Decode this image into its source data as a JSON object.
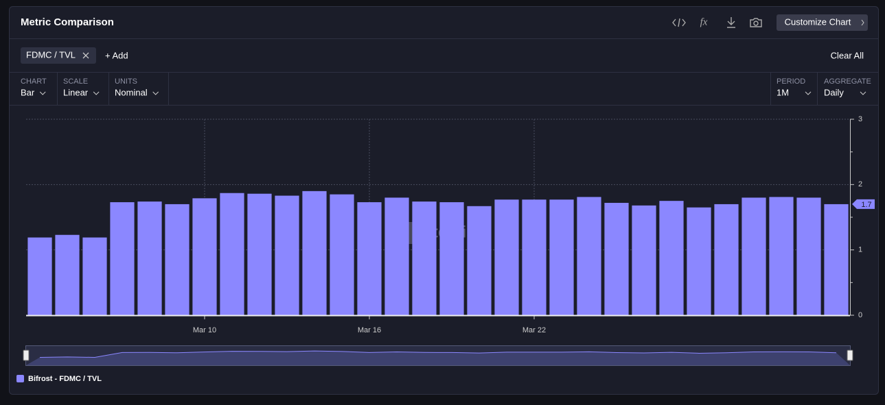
{
  "header": {
    "title": "Metric Comparison",
    "formula_icon": "fx",
    "customize": "Customize Chart"
  },
  "metrics": {
    "chips": [
      "FDMC / TVL"
    ],
    "add": "+ Add",
    "clear": "Clear All"
  },
  "controls": [
    {
      "label": "CHART",
      "value": "Bar"
    },
    {
      "label": "SCALE",
      "value": "Linear"
    },
    {
      "label": "UNITS",
      "value": "Nominal"
    },
    {
      "label": "PERIOD",
      "value": "1M"
    },
    {
      "label": "AGGREGATE",
      "value": "Daily"
    }
  ],
  "watermark": "Artemis",
  "chart_data": {
    "type": "bar",
    "categories": [
      null,
      null,
      null,
      null,
      null,
      null,
      "Mar 10",
      null,
      null,
      null,
      null,
      null,
      "Mar 16",
      null,
      null,
      null,
      null,
      null,
      "Mar 22",
      null,
      null,
      null,
      null,
      null,
      null,
      null,
      null,
      null,
      null,
      null
    ],
    "series": [
      {
        "name": "Bifrost - FDMC / TVL",
        "color": "#8b87ff",
        "values": [
          1.19,
          1.23,
          1.19,
          1.73,
          1.74,
          1.7,
          1.79,
          1.87,
          1.86,
          1.83,
          1.9,
          1.85,
          1.73,
          1.8,
          1.74,
          1.73,
          1.67,
          1.77,
          1.77,
          1.77,
          1.81,
          1.72,
          1.68,
          1.75,
          1.65,
          1.7,
          1.8,
          1.81,
          1.8,
          1.7
        ],
        "value_labels": [
          null,
          null,
          null,
          null,
          null,
          null,
          null,
          null,
          null,
          null,
          null,
          null,
          null,
          null,
          null,
          null,
          null,
          null,
          null,
          null,
          null,
          null,
          null,
          null,
          null,
          null,
          null,
          null,
          null,
          "1.7"
        ]
      }
    ],
    "ylim": [
      0,
      3
    ],
    "yticks": [
      0,
      1,
      2,
      3
    ],
    "grid": true,
    "y_axis_side": "right"
  }
}
